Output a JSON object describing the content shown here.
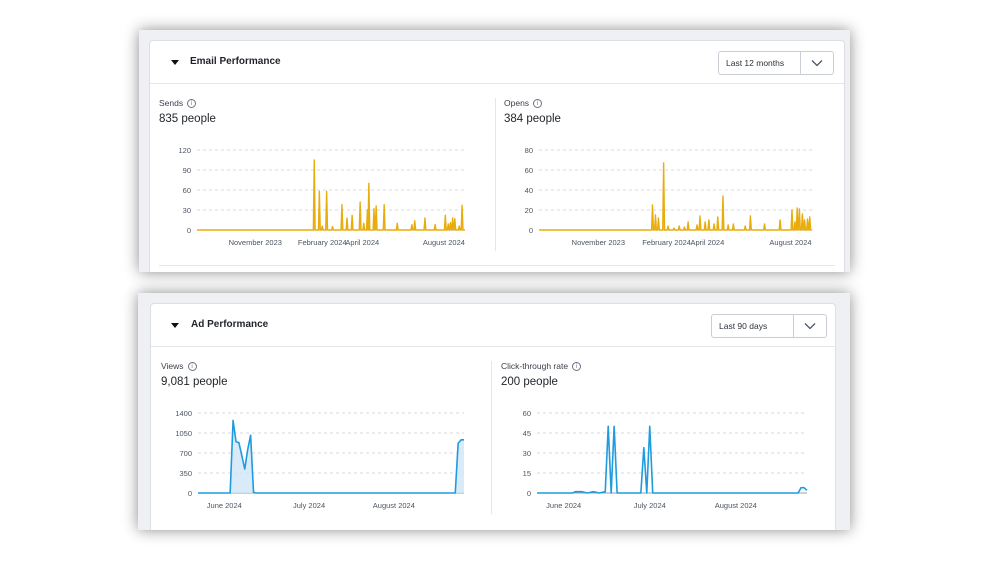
{
  "email_performance": {
    "title": "Email Performance",
    "range": "Last 12 months",
    "colors": {
      "line": "#e8ad0c",
      "fill": "#f0bf2a"
    },
    "panels": [
      {
        "label": "Sends",
        "value": "835 people",
        "chart_data": {
          "type": "area",
          "ylim": [
            0,
            120
          ],
          "y_ticks": [
            0,
            30,
            60,
            90,
            120
          ],
          "x_ticks": [
            "November 2023",
            "February 2024",
            "April 2024",
            "August 2024"
          ],
          "x_range": [
            "2023-09-01",
            "2024-09-03"
          ],
          "x_tick_dates": [
            "2023-11-20",
            "2024-02-20",
            "2024-04-15",
            "2024-08-05"
          ],
          "series": [
            {
              "points": [
                [
                  "2024-02-09",
                  105
                ],
                [
                  "2024-02-16",
                  58
                ],
                [
                  "2024-02-20",
                  6
                ],
                [
                  "2024-02-26",
                  58
                ],
                [
                  "2024-03-05",
                  5
                ],
                [
                  "2024-03-18",
                  38
                ],
                [
                  "2024-03-25",
                  18
                ],
                [
                  "2024-04-01",
                  22
                ],
                [
                  "2024-04-12",
                  42
                ],
                [
                  "2024-04-17",
                  10
                ],
                [
                  "2024-04-22",
                  30
                ],
                [
                  "2024-04-24",
                  70
                ],
                [
                  "2024-05-01",
                  32
                ],
                [
                  "2024-05-04",
                  36
                ],
                [
                  "2024-05-15",
                  38
                ],
                [
                  "2024-06-02",
                  10
                ],
                [
                  "2024-06-22",
                  8
                ],
                [
                  "2024-06-26",
                  14
                ],
                [
                  "2024-07-10",
                  18
                ],
                [
                  "2024-07-24",
                  8
                ],
                [
                  "2024-08-07",
                  22
                ],
                [
                  "2024-08-11",
                  9
                ],
                [
                  "2024-08-14",
                  11
                ],
                [
                  "2024-08-17",
                  18
                ],
                [
                  "2024-08-20",
                  17
                ],
                [
                  "2024-08-26",
                  6
                ],
                [
                  "2024-08-30",
                  37
                ]
              ]
            }
          ]
        }
      },
      {
        "label": "Opens",
        "value": "384 people",
        "chart_data": {
          "type": "area",
          "ylim": [
            0,
            80
          ],
          "y_ticks": [
            0,
            20,
            40,
            60,
            80
          ],
          "x_ticks": [
            "November 2023",
            "February 2024",
            "April 2024",
            "August 2024"
          ],
          "x_range": [
            "2023-09-01",
            "2024-09-03"
          ],
          "x_tick_dates": [
            "2023-11-20",
            "2024-02-20",
            "2024-04-15",
            "2024-08-05"
          ],
          "series": [
            {
              "points": [
                [
                  "2024-02-01",
                  25
                ],
                [
                  "2024-02-05",
                  15
                ],
                [
                  "2024-02-09",
                  12
                ],
                [
                  "2024-02-16",
                  67
                ],
                [
                  "2024-02-22",
                  4
                ],
                [
                  "2024-03-01",
                  2
                ],
                [
                  "2024-03-08",
                  4
                ],
                [
                  "2024-03-15",
                  3
                ],
                [
                  "2024-03-20",
                  8
                ],
                [
                  "2024-04-01",
                  5
                ],
                [
                  "2024-04-05",
                  14
                ],
                [
                  "2024-04-12",
                  8
                ],
                [
                  "2024-04-17",
                  10
                ],
                [
                  "2024-04-24",
                  6
                ],
                [
                  "2024-04-29",
                  13
                ],
                [
                  "2024-05-06",
                  34
                ],
                [
                  "2024-05-13",
                  5
                ],
                [
                  "2024-05-20",
                  6
                ],
                [
                  "2024-06-05",
                  4
                ],
                [
                  "2024-06-12",
                  14
                ],
                [
                  "2024-07-01",
                  6
                ],
                [
                  "2024-07-22",
                  10
                ],
                [
                  "2024-08-07",
                  20
                ],
                [
                  "2024-08-11",
                  8
                ],
                [
                  "2024-08-14",
                  22
                ],
                [
                  "2024-08-17",
                  21
                ],
                [
                  "2024-08-21",
                  16
                ],
                [
                  "2024-08-24",
                  10
                ],
                [
                  "2024-08-28",
                  11
                ],
                [
                  "2024-08-31",
                  13
                ]
              ]
            }
          ]
        }
      }
    ]
  },
  "ad_performance": {
    "title": "Ad Performance",
    "range": "Last 90 days",
    "colors": {
      "line": "#1f9bde",
      "fill": "#cfe6f6"
    },
    "panels": [
      {
        "label": "Views",
        "value": "9,081 people",
        "chart_data": {
          "type": "area",
          "ylim": [
            0,
            1400
          ],
          "y_ticks": [
            0,
            350,
            700,
            1050,
            1400
          ],
          "x_ticks": [
            "June 2024",
            "July 2024",
            "August 2024"
          ],
          "x_range": [
            "2024-06-01",
            "2024-08-31"
          ],
          "x_tick_dates": [
            "2024-06-10",
            "2024-07-09",
            "2024-08-07"
          ],
          "series": [
            {
              "points": [
                [
                  "2024-06-01",
                  0
                ],
                [
                  "2024-06-12",
                  0
                ],
                [
                  "2024-06-13",
                  1270
                ],
                [
                  "2024-06-14",
                  900
                ],
                [
                  "2024-06-15",
                  880
                ],
                [
                  "2024-06-17",
                  420
                ],
                [
                  "2024-06-18",
                  760
                ],
                [
                  "2024-06-19",
                  1010
                ],
                [
                  "2024-06-20",
                  10
                ],
                [
                  "2024-06-21",
                  0
                ],
                [
                  "2024-08-28",
                  0
                ],
                [
                  "2024-08-29",
                  870
                ],
                [
                  "2024-08-30",
                  930
                ],
                [
                  "2024-08-31",
                  930
                ]
              ]
            }
          ]
        }
      },
      {
        "label": "Click-through rate",
        "value": "200 people",
        "chart_data": {
          "type": "line",
          "ylim": [
            0,
            60
          ],
          "y_ticks": [
            0,
            15,
            30,
            45,
            60
          ],
          "x_ticks": [
            "June 2024",
            "July 2024",
            "August 2024"
          ],
          "x_range": [
            "2024-06-01",
            "2024-08-31"
          ],
          "x_tick_dates": [
            "2024-06-10",
            "2024-07-09",
            "2024-08-07"
          ],
          "series": [
            {
              "points": [
                [
                  "2024-06-01",
                  0
                ],
                [
                  "2024-06-13",
                  0
                ],
                [
                  "2024-06-14",
                  1
                ],
                [
                  "2024-06-16",
                  1
                ],
                [
                  "2024-06-18",
                  0
                ],
                [
                  "2024-06-20",
                  1
                ],
                [
                  "2024-06-22",
                  0
                ],
                [
                  "2024-06-24",
                  1
                ],
                [
                  "2024-06-25",
                  50
                ],
                [
                  "2024-06-26",
                  0
                ],
                [
                  "2024-06-27",
                  50
                ],
                [
                  "2024-06-28",
                  0
                ],
                [
                  "2024-07-06",
                  0
                ],
                [
                  "2024-07-07",
                  34
                ],
                [
                  "2024-07-08",
                  0
                ],
                [
                  "2024-07-09",
                  50
                ],
                [
                  "2024-07-10",
                  0
                ],
                [
                  "2024-08-28",
                  0
                ],
                [
                  "2024-08-29",
                  4
                ],
                [
                  "2024-08-30",
                  4
                ],
                [
                  "2024-08-31",
                  2
                ]
              ]
            }
          ]
        }
      }
    ]
  }
}
